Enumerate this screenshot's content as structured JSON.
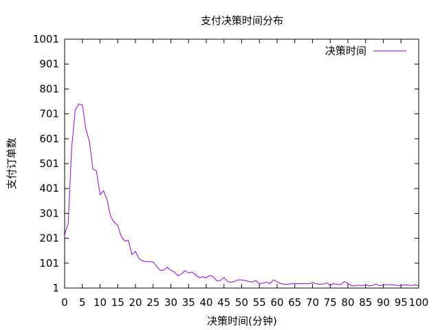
{
  "chart_data": {
    "type": "line",
    "title": "支付决策时间分布",
    "xlabel": "决策时间(分钟)",
    "ylabel": "支付订单数",
    "xlim": [
      0,
      100
    ],
    "ylim": [
      1,
      1001
    ],
    "x_ticks": [
      0,
      5,
      10,
      15,
      20,
      25,
      30,
      35,
      40,
      45,
      50,
      55,
      60,
      65,
      70,
      75,
      80,
      85,
      90,
      95,
      100
    ],
    "y_ticks": [
      1,
      101,
      201,
      301,
      401,
      501,
      601,
      701,
      801,
      901,
      1001
    ],
    "grid": false,
    "legend_position": "top-right",
    "colors": {
      "series": "#9400d3",
      "axis": "#000000"
    },
    "series": [
      {
        "name": "决策时间",
        "x": [
          0,
          1,
          2,
          3,
          4,
          5,
          6,
          7,
          8,
          9,
          10,
          11,
          12,
          13,
          14,
          15,
          16,
          17,
          18,
          19,
          20,
          21,
          22,
          23,
          24,
          25,
          26,
          27,
          28,
          29,
          30,
          31,
          32,
          33,
          34,
          35,
          36,
          37,
          38,
          39,
          40,
          41,
          42,
          43,
          44,
          45,
          46,
          47,
          48,
          49,
          50,
          51,
          52,
          53,
          54,
          55,
          56,
          57,
          58,
          59,
          60,
          61,
          62,
          63,
          64,
          65,
          66,
          67,
          68,
          69,
          70,
          71,
          72,
          73,
          74,
          75,
          76,
          77,
          78,
          79,
          80,
          81,
          82,
          83,
          84,
          85,
          86,
          87,
          88,
          89,
          90,
          91,
          92,
          93,
          94,
          95,
          96,
          97,
          98,
          99,
          100
        ],
        "values": [
          215,
          262,
          567,
          717,
          740,
          737,
          640,
          590,
          478,
          472,
          376,
          392,
          356,
          288,
          265,
          253,
          208,
          190,
          193,
          136,
          148,
          120,
          110,
          107,
          107,
          106,
          88,
          72,
          73,
          84,
          73,
          66,
          50,
          58,
          71,
          62,
          65,
          54,
          43,
          46,
          42,
          52,
          46,
          30,
          31,
          43,
          28,
          24,
          28,
          34,
          34,
          31,
          28,
          25,
          32,
          17,
          21,
          25,
          18,
          34,
          27,
          19,
          17,
          16,
          18,
          20,
          18,
          19,
          19,
          18,
          23,
          18,
          17,
          17,
          22,
          12,
          19,
          16,
          15,
          27,
          20,
          10,
          10,
          13,
          10,
          14,
          9,
          12,
          17,
          10,
          13,
          15,
          14,
          14,
          11,
          11,
          14,
          13,
          11,
          15,
          9
        ]
      }
    ]
  }
}
